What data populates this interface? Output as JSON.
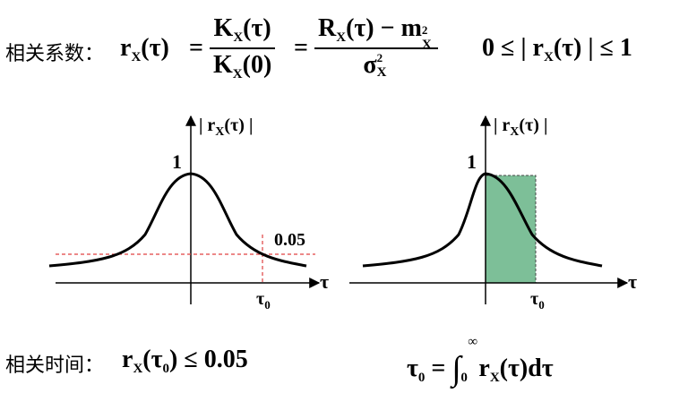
{
  "definition": {
    "label": "相关系数：",
    "lhs": "r",
    "lhs_sub": "X",
    "lhs_arg": "(τ)",
    "frac1_num": "K",
    "frac1_num_sub": "X",
    "frac1_num_arg": "(τ)",
    "frac1_den": "K",
    "frac1_den_sub": "X",
    "frac1_den_arg": "(0)",
    "frac2_num_a": "R",
    "frac2_num_a_sub": "X",
    "frac2_num_a_arg": "(τ) − m",
    "frac2_num_b_sub": "X",
    "frac2_num_b_sup": "2",
    "frac2_den": "σ",
    "frac2_den_sub": "X",
    "frac2_den_sup": "2",
    "bound_left": "0 ≤ | r",
    "bound_sub": "X",
    "bound_right": "(τ) | ≤ 1"
  },
  "left_plot": {
    "y_axis_label": "| r",
    "y_axis_label_sub": "X",
    "y_axis_label_arg": "(τ) |",
    "x_axis_label": "τ",
    "peak_label": "1",
    "threshold_label": "0.05",
    "tick_label": "τ",
    "tick_label_sub": "0"
  },
  "right_plot": {
    "y_axis_label": "| r",
    "y_axis_label_sub": "X",
    "y_axis_label_arg": "(τ) |",
    "x_axis_label": "τ",
    "peak_label": "1",
    "tick_label": "τ",
    "tick_label_sub": "0"
  },
  "correlation_time": {
    "label": "相关时间：",
    "lhs": "r",
    "lhs_sub": "X",
    "lhs_arg_open": "(τ",
    "lhs_arg_sub": "0",
    "lhs_arg_close": ") ≤ 0.05"
  },
  "integral_def": {
    "lhs": "τ",
    "lhs_sub": "0",
    "eq": " = ",
    "integral": "∫",
    "upper": "∞",
    "lower": "0",
    "integrand": "r",
    "integrand_sub": "X",
    "integrand_arg": "(τ)dτ"
  },
  "colors": {
    "fill": "#7dbf98",
    "threshold_line": "#e04040"
  }
}
